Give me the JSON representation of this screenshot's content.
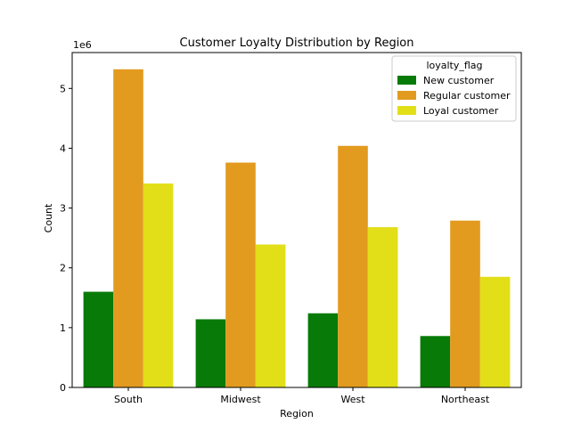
{
  "chart_data": {
    "type": "bar",
    "title": "Customer Loyalty Distribution by Region",
    "xlabel": "Region",
    "ylabel": "Count",
    "y_offset_label": "1e6",
    "categories": [
      "South",
      "Midwest",
      "West",
      "Northeast"
    ],
    "ylim": [
      0,
      5.6
    ],
    "yticks": [
      0,
      1,
      2,
      3,
      4,
      5
    ],
    "grid": false,
    "legend": {
      "title": "loyalty_flag",
      "placement": "top-right"
    },
    "series": [
      {
        "name": "New customer",
        "color": "#087a08",
        "values": [
          1.6,
          1.14,
          1.24,
          0.86
        ]
      },
      {
        "name": "Regular customer",
        "color": "#e29b1f",
        "values": [
          5.32,
          3.76,
          4.04,
          2.79
        ]
      },
      {
        "name": "Loyal customer",
        "color": "#e2df19",
        "values": [
          3.41,
          2.39,
          2.68,
          1.85
        ]
      }
    ]
  }
}
